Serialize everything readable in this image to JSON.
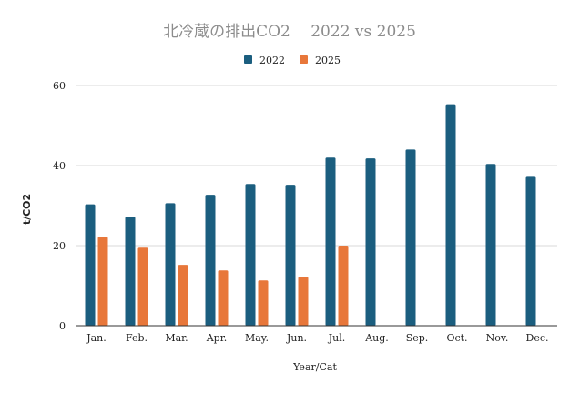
{
  "chart_data": {
    "type": "bar",
    "title": "北冷蔵の排出CO2　 2022 vs 2025",
    "xlabel": "Year/Cat",
    "ylabel": "t/CO2",
    "ylim": [
      0,
      60
    ],
    "yticks": [
      0,
      20,
      40,
      60
    ],
    "grid": true,
    "legend_position": "top",
    "categories": [
      "Jan.",
      "Feb.",
      "Mar.",
      "Apr.",
      "May.",
      "Jun.",
      "Jul.",
      "Aug.",
      "Sep.",
      "Oct.",
      "Nov.",
      "Dec."
    ],
    "series": [
      {
        "name": "2022",
        "color": "#1b5e7f",
        "values": [
          30.3,
          27.2,
          30.6,
          32.7,
          35.4,
          35.2,
          42.0,
          41.8,
          44.0,
          55.3,
          40.4,
          37.2
        ]
      },
      {
        "name": "2025",
        "color": "#e8773a",
        "values": [
          22.2,
          19.5,
          15.2,
          13.8,
          11.3,
          12.2,
          20.0,
          null,
          null,
          null,
          null,
          null
        ]
      }
    ]
  }
}
